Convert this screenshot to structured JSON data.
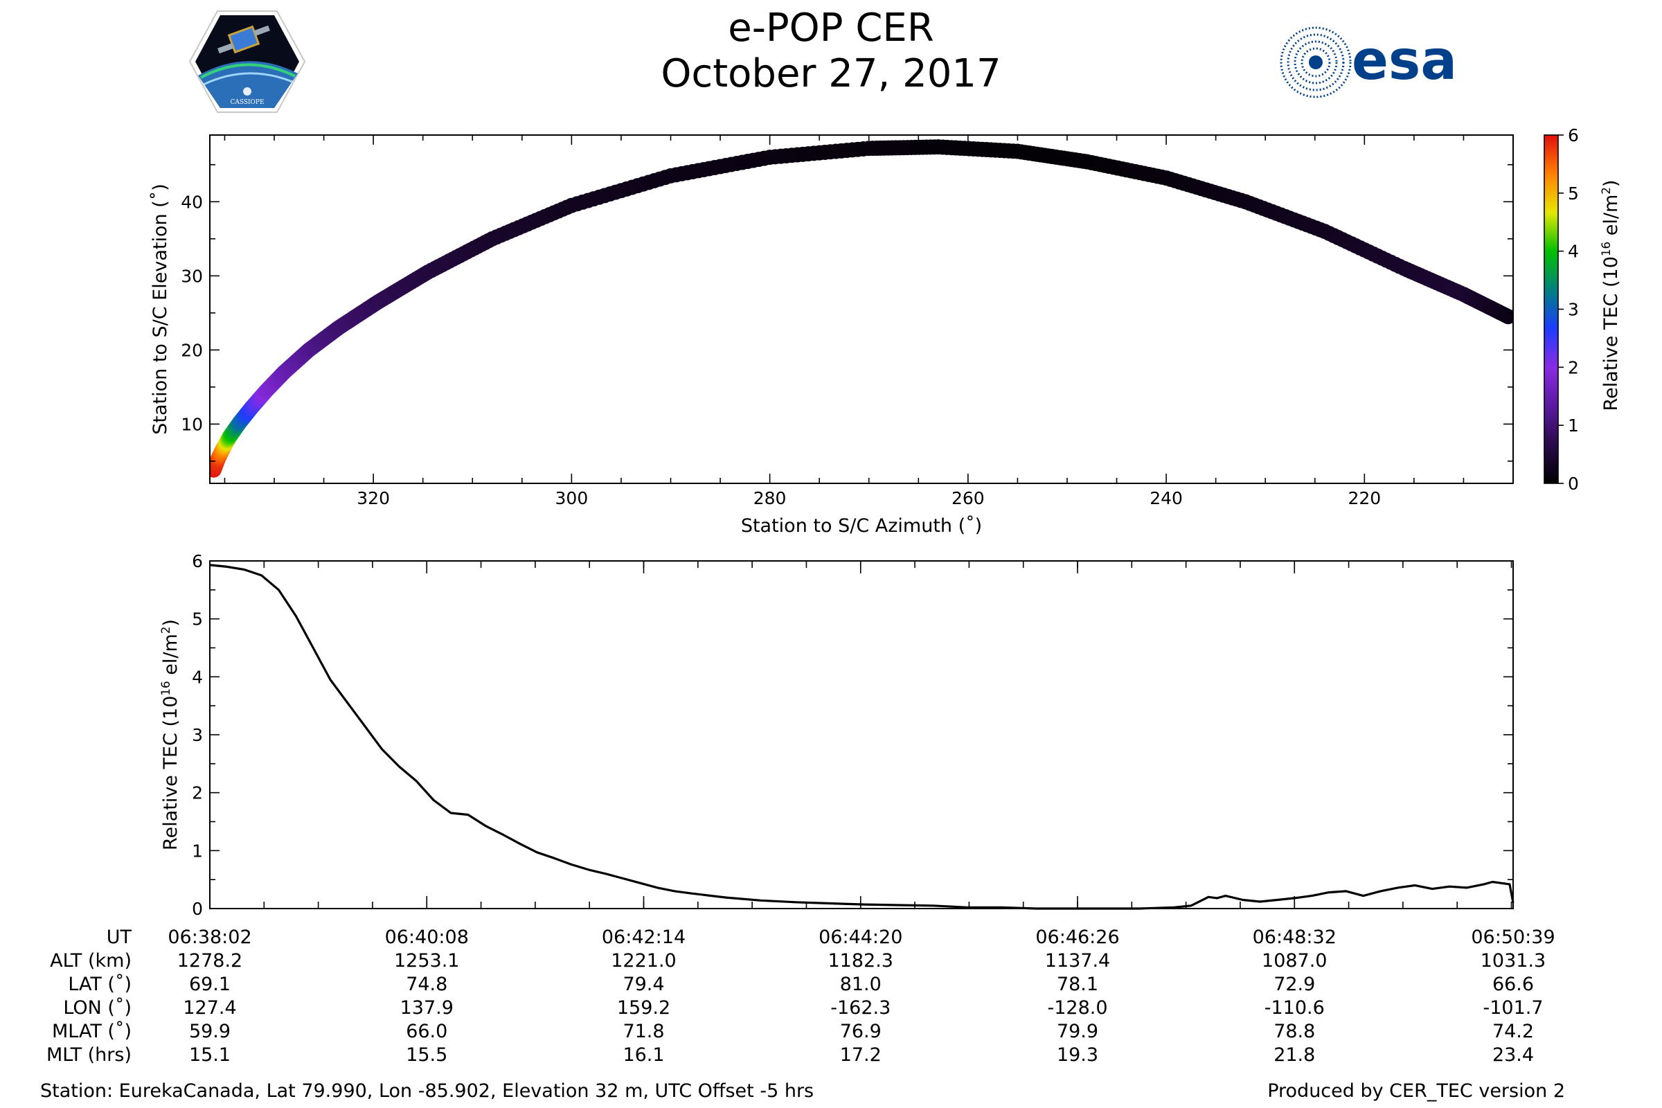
{
  "header": {
    "title": "e-POP CER",
    "date": "October 27, 2017",
    "esa_logo_text": "esa",
    "cassiope_logo_text": "CASSIOPE"
  },
  "colors": {
    "track_colormap": [
      "#000000",
      "#2a0a4a",
      "#5a1aa0",
      "#8a2be2",
      "#1e3cff",
      "#008080",
      "#00c000",
      "#e6e600",
      "#ff8000",
      "#e01010"
    ],
    "line": "#000000",
    "esa_blue": "#003f8a"
  },
  "chart_data": [
    {
      "type": "scatter",
      "xlabel": "Station to S/C Azimuth (˚)",
      "ylabel": "Station to S/C Elevation (˚)",
      "xlim": [
        336.5,
        205
      ],
      "ylim": [
        2,
        49
      ],
      "xticks": [
        320,
        300,
        280,
        260,
        240,
        220
      ],
      "yticks": [
        10,
        20,
        30,
        40
      ],
      "color_label": "Relative TEC (10",
      "color_label_sup": "16",
      "color_label_end": " el/m",
      "color_label_sup2": "2",
      "color_label_close": ")",
      "clim": [
        0,
        6
      ],
      "cticks": [
        0,
        1,
        2,
        3,
        4,
        5,
        6
      ],
      "points": [
        {
          "az": 336.1,
          "el": 3.8,
          "tec": 5.95
        },
        {
          "az": 335.7,
          "el": 5.2,
          "tec": 5.8
        },
        {
          "az": 335.2,
          "el": 6.6,
          "tec": 5.3
        },
        {
          "az": 334.5,
          "el": 8.3,
          "tec": 4.2
        },
        {
          "az": 333.5,
          "el": 10.2,
          "tec": 3.2
        },
        {
          "az": 332.3,
          "el": 12.2,
          "tec": 2.5
        },
        {
          "az": 330.8,
          "el": 14.5,
          "tec": 1.9
        },
        {
          "az": 329.0,
          "el": 17.0,
          "tec": 1.55
        },
        {
          "az": 326.5,
          "el": 20.0,
          "tec": 1.2
        },
        {
          "az": 323.5,
          "el": 23.0,
          "tec": 0.95
        },
        {
          "az": 319.5,
          "el": 26.5,
          "tec": 0.75
        },
        {
          "az": 314.5,
          "el": 30.5,
          "tec": 0.55
        },
        {
          "az": 308.0,
          "el": 35.0,
          "tec": 0.4
        },
        {
          "az": 300.0,
          "el": 39.5,
          "tec": 0.28
        },
        {
          "az": 290.0,
          "el": 43.5,
          "tec": 0.2
        },
        {
          "az": 280.0,
          "el": 46.0,
          "tec": 0.15
        },
        {
          "az": 270.0,
          "el": 47.2,
          "tec": 0.1
        },
        {
          "az": 263.0,
          "el": 47.4,
          "tec": 0.08
        },
        {
          "az": 255.0,
          "el": 46.8,
          "tec": 0.05
        },
        {
          "az": 248.0,
          "el": 45.4,
          "tec": 0.05
        },
        {
          "az": 240.0,
          "el": 43.2,
          "tec": 0.12
        },
        {
          "az": 232.0,
          "el": 40.0,
          "tec": 0.2
        },
        {
          "az": 224.0,
          "el": 36.0,
          "tec": 0.28
        },
        {
          "az": 216.0,
          "el": 31.0,
          "tec": 0.38
        },
        {
          "az": 210.0,
          "el": 27.5,
          "tec": 0.45
        },
        {
          "az": 205.5,
          "el": 24.5,
          "tec": 0.2
        }
      ]
    },
    {
      "type": "line",
      "ylabel": "Relative TEC (10",
      "ylabel_sup": "16",
      "ylabel_end": " el/m",
      "ylabel_sup2": "2",
      "ylabel_close": ")",
      "xlim": [
        0,
        757
      ],
      "ylim": [
        0,
        6
      ],
      "yticks": [
        0,
        1,
        2,
        3,
        4,
        5,
        6
      ],
      "x": [
        0,
        10,
        20,
        30,
        40,
        50,
        60,
        70,
        80,
        90,
        100,
        110,
        120,
        130,
        140,
        150,
        160,
        170,
        180,
        190,
        200,
        210,
        220,
        230,
        240,
        250,
        260,
        270,
        280,
        300,
        320,
        340,
        360,
        380,
        400,
        420,
        440,
        460,
        480,
        500,
        520,
        540,
        560,
        570,
        580,
        585,
        590,
        600,
        610,
        620,
        630,
        640,
        650,
        660,
        670,
        680,
        690,
        700,
        710,
        720,
        730,
        740,
        745,
        750,
        755,
        757
      ],
      "y": [
        5.93,
        5.9,
        5.85,
        5.75,
        5.5,
        5.05,
        4.5,
        3.95,
        3.55,
        3.15,
        2.75,
        2.45,
        2.2,
        1.87,
        1.65,
        1.62,
        1.43,
        1.28,
        1.12,
        0.97,
        0.87,
        0.76,
        0.67,
        0.6,
        0.52,
        0.44,
        0.36,
        0.3,
        0.26,
        0.19,
        0.14,
        0.11,
        0.09,
        0.07,
        0.06,
        0.05,
        0.02,
        0.02,
        0.0,
        0.0,
        0.0,
        0.0,
        0.02,
        0.05,
        0.2,
        0.18,
        0.22,
        0.15,
        0.12,
        0.15,
        0.18,
        0.22,
        0.28,
        0.3,
        0.22,
        0.3,
        0.36,
        0.4,
        0.34,
        0.38,
        0.36,
        0.42,
        0.46,
        0.44,
        0.42,
        0.1
      ]
    }
  ],
  "time_table": {
    "row_labels": [
      "UT",
      "ALT (km)",
      "LAT (˚)",
      "LON (˚)",
      "MLAT (˚)",
      "MLT (hrs)"
    ],
    "columns": [
      {
        "t": 0,
        "values": [
          "06:38:02",
          "1278.2",
          "69.1",
          "127.4",
          "59.9",
          "15.1"
        ]
      },
      {
        "t": 126,
        "values": [
          "06:40:08",
          "1253.1",
          "74.8",
          "137.9",
          "66.0",
          "15.5"
        ]
      },
      {
        "t": 252,
        "values": [
          "06:42:14",
          "1221.0",
          "79.4",
          "159.2",
          "71.8",
          "16.1"
        ]
      },
      {
        "t": 378,
        "values": [
          "06:44:20",
          "1182.3",
          "81.0",
          "-162.3",
          "76.9",
          "17.2"
        ]
      },
      {
        "t": 504,
        "values": [
          "06:46:26",
          "1137.4",
          "78.1",
          "-128.0",
          "79.9",
          "19.3"
        ]
      },
      {
        "t": 630,
        "values": [
          "06:48:32",
          "1087.0",
          "72.9",
          "-110.6",
          "78.8",
          "21.8"
        ]
      },
      {
        "t": 757,
        "values": [
          "06:50:39",
          "1031.3",
          "66.6",
          "-101.7",
          "74.2",
          "23.4"
        ]
      }
    ]
  },
  "footer": {
    "station": "Station: EurekaCanada, Lat 79.990, Lon -85.902, Elevation 32 m, UTC Offset -5 hrs",
    "produced": "Produced by CER_TEC version 2"
  }
}
